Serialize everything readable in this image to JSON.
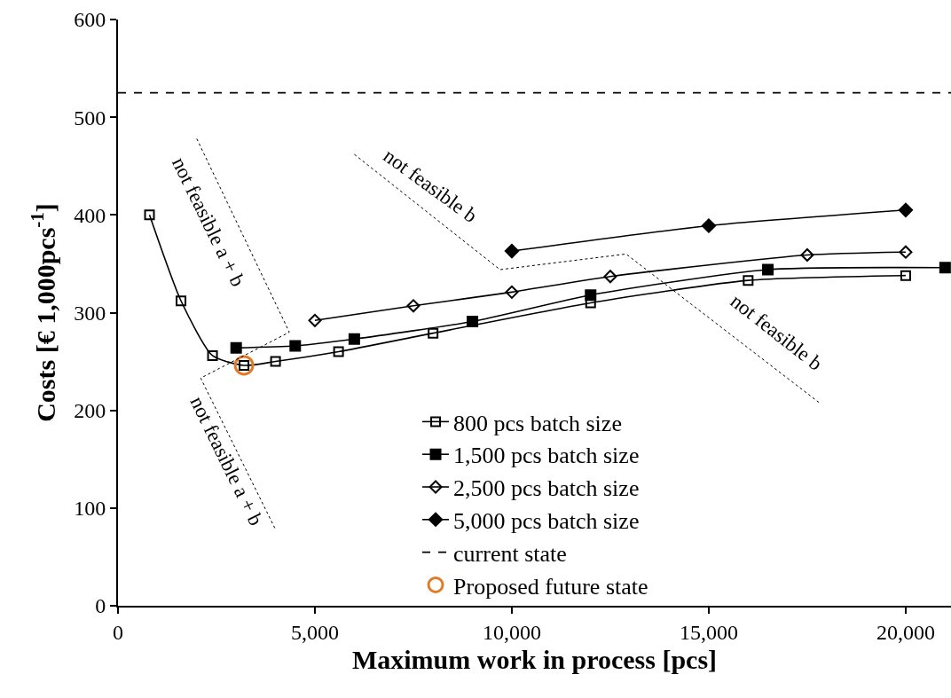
{
  "chart_data": {
    "type": "line",
    "xlabel": "Maximum work in process [pcs]",
    "ylabel": "Costs [€ 1,000pcs$^{-1}$]",
    "xlim": [
      0,
      21150
    ],
    "xticks": [
      0,
      {
        "value": 5000,
        "label": "5,000"
      },
      {
        "value": 10000,
        "label": "10,000"
      },
      {
        "value": 15000,
        "label": "15,000"
      },
      {
        "value": 20000,
        "label": "20,000"
      }
    ],
    "ylim": [
      0,
      600
    ],
    "yticks": [
      0,
      100,
      200,
      300,
      400,
      500,
      600
    ],
    "legend": "bottom",
    "series": [
      {
        "name": "800 pcs batch size",
        "color": "#000000",
        "marker": "square-open",
        "x": [
          800,
          1600,
          2400,
          3200,
          4000,
          5600,
          8000,
          12000,
          16000,
          20000
        ],
        "values": [
          400,
          312,
          256,
          246,
          250,
          260,
          279,
          310,
          333,
          338
        ]
      },
      {
        "name": "1,500 pcs batch size",
        "color": "#000000",
        "marker": "square",
        "x": [
          3000,
          4500,
          6000,
          9000,
          12000,
          16500,
          21000
        ],
        "values": [
          264,
          266,
          273,
          291,
          318,
          344,
          346
        ]
      },
      {
        "name": "2,500 pcs batch size",
        "color": "#000000",
        "marker": "diamond-open",
        "x": [
          5000,
          7500,
          10000,
          12500,
          17500,
          20000
        ],
        "values": [
          292,
          307,
          321,
          337,
          359,
          362
        ]
      },
      {
        "name": "5,000 pcs batch size",
        "color": "#000000",
        "marker": "diamond",
        "x": [
          10000,
          15000,
          20000
        ],
        "values": [
          363,
          389,
          405
        ]
      },
      {
        "name": "current state",
        "color": "#000000",
        "marker": "none",
        "line_style": "dashed",
        "x": [
          0,
          21150
        ],
        "values": [
          525,
          525
        ]
      },
      {
        "name": "Proposed future state",
        "type": "scatter",
        "color": "#e07b28",
        "marker": "circle-open",
        "x": [
          3200
        ],
        "values": [
          246
        ]
      },
      {
        "type": "line",
        "color": "#000000",
        "marker": "none",
        "line_style": "dotted",
        "x": [
          2000,
          4350,
          2100,
          4000
        ],
        "values": [
          478,
          280,
          233,
          78
        ]
      },
      {
        "type": "line",
        "color": "#000000",
        "marker": "none",
        "line_style": "dotted",
        "x": [
          6000,
          9700,
          12900,
          17800
        ],
        "values": [
          462,
          344,
          360,
          208
        ]
      }
    ],
    "annotations": [
      "not feasible a + b",
      "not feasible a + b",
      "not feasible b",
      "not feasible b"
    ]
  }
}
